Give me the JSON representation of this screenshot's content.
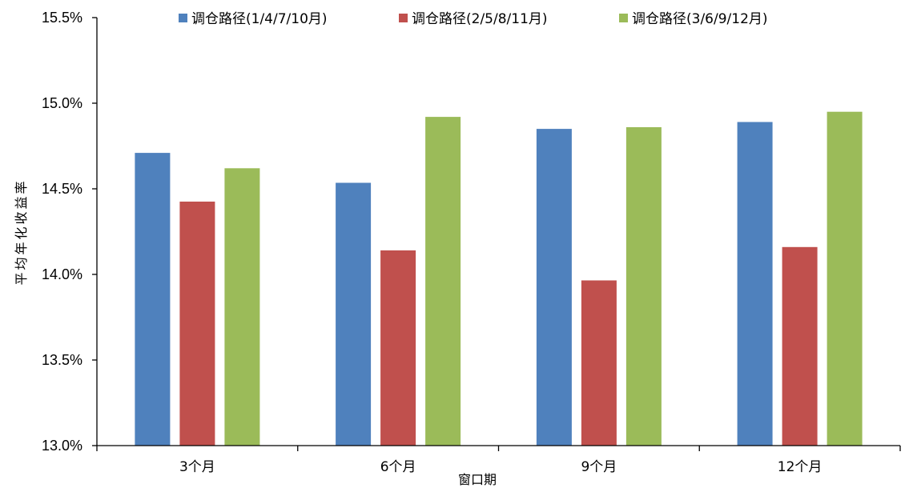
{
  "chart_data": {
    "type": "bar",
    "categories": [
      "3个月",
      "6个月",
      "9个月",
      "12个月"
    ],
    "series": [
      {
        "name": "调仓路径(1/4/7/10月)",
        "color": "#4f81bd",
        "values": [
          14.71,
          14.535,
          14.85,
          14.89
        ]
      },
      {
        "name": "调仓路径(2/5/8/11月)",
        "color": "#c0504d",
        "values": [
          14.425,
          14.14,
          13.965,
          14.16
        ]
      },
      {
        "name": "调仓路径(3/6/9/12月)",
        "color": "#9bbb59",
        "values": [
          14.62,
          14.92,
          14.86,
          14.95
        ]
      }
    ],
    "xlabel": "窗口期",
    "ylabel": "平均年化收益率",
    "ylim": [
      13.0,
      15.5
    ],
    "yticks": [
      13.0,
      13.5,
      14.0,
      14.5,
      15.0,
      15.5
    ],
    "ytick_labels": [
      "13.0%",
      "13.5%",
      "14.0%",
      "14.5%",
      "15.0%",
      "15.5%"
    ],
    "legend_position": "top",
    "grid": false
  }
}
